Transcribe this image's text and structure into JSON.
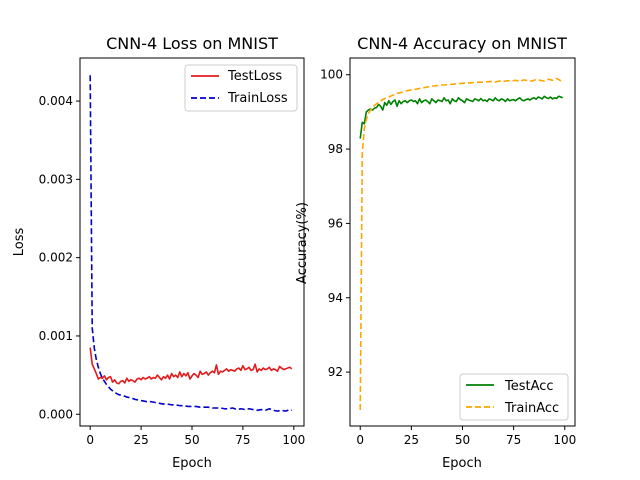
{
  "chart_data": [
    {
      "type": "line",
      "title": "CNN-4 Loss on MNIST",
      "xlabel": "Epoch",
      "ylabel": "Loss",
      "xlim": [
        -5,
        105
      ],
      "ylim": [
        -0.00015,
        0.00455
      ],
      "xticks": [
        0,
        25,
        50,
        75,
        100
      ],
      "xtick_labels": [
        "0",
        "25",
        "50",
        "75",
        "100"
      ],
      "yticks": [
        0.0,
        0.001,
        0.002,
        0.003,
        0.004
      ],
      "ytick_labels": [
        "0.000",
        "0.001",
        "0.002",
        "0.003",
        "0.004"
      ],
      "grid": false,
      "legend": "top-right",
      "series": [
        {
          "name": "TestLoss",
          "color": "#e31a1c",
          "style": "solid",
          "x": [
            0,
            1,
            2,
            3,
            4,
            5,
            6,
            7,
            8,
            9,
            10,
            11,
            12,
            13,
            14,
            15,
            16,
            17,
            18,
            19,
            20,
            21,
            22,
            23,
            24,
            25,
            26,
            27,
            28,
            29,
            30,
            31,
            32,
            33,
            34,
            35,
            36,
            37,
            38,
            39,
            40,
            41,
            42,
            43,
            44,
            45,
            46,
            47,
            48,
            49,
            50,
            51,
            52,
            53,
            54,
            55,
            56,
            57,
            58,
            59,
            60,
            61,
            62,
            63,
            64,
            65,
            66,
            67,
            68,
            69,
            70,
            71,
            72,
            73,
            74,
            75,
            76,
            77,
            78,
            79,
            80,
            81,
            82,
            83,
            84,
            85,
            86,
            87,
            88,
            89,
            90,
            91,
            92,
            93,
            94,
            95,
            96,
            97,
            98,
            99
          ],
          "y": [
            0.00085,
            0.00064,
            0.00058,
            0.00052,
            0.00045,
            0.00047,
            0.00046,
            0.00049,
            0.00044,
            0.00047,
            0.00048,
            0.00041,
            0.00044,
            0.0004,
            0.00039,
            0.00042,
            0.00043,
            0.0004,
            0.00046,
            0.00042,
            0.00044,
            0.00043,
            0.00041,
            0.00045,
            0.00046,
            0.00044,
            0.00047,
            0.00045,
            0.00046,
            0.00048,
            0.00045,
            0.00047,
            0.00046,
            0.0005,
            0.00047,
            0.00044,
            0.00048,
            0.00046,
            0.0005,
            0.00045,
            0.00052,
            0.00048,
            0.0005,
            0.00047,
            0.00054,
            0.00048,
            0.00052,
            0.00049,
            0.00053,
            0.00045,
            0.00049,
            0.00052,
            0.0005,
            0.00047,
            0.00055,
            0.00051,
            0.00052,
            0.00054,
            0.0005,
            0.00053,
            0.00055,
            0.00053,
            0.00063,
            0.00051,
            0.00055,
            0.00054,
            0.00056,
            0.00058,
            0.00055,
            0.00057,
            0.00056,
            0.00055,
            0.00058,
            0.00059,
            0.00056,
            0.00062,
            0.00057,
            0.00058,
            0.0006,
            0.00056,
            0.00057,
            0.00064,
            0.00054,
            0.00058,
            0.00056,
            0.00059,
            0.00057,
            0.00058,
            0.0006,
            0.00056,
            0.00058,
            0.00057,
            0.00055,
            0.00061,
            0.00059,
            0.00057,
            0.00058,
            0.00059,
            0.0006,
            0.00058
          ]
        },
        {
          "name": "TrainLoss",
          "color": "#0000cc",
          "style": "dashed",
          "x": [
            0,
            1,
            2,
            3,
            4,
            5,
            6,
            7,
            8,
            9,
            10,
            12,
            14,
            16,
            18,
            20,
            22,
            24,
            26,
            28,
            30,
            32,
            34,
            36,
            38,
            40,
            42,
            44,
            46,
            48,
            50,
            52,
            54,
            56,
            58,
            60,
            62,
            64,
            66,
            68,
            70,
            72,
            74,
            76,
            78,
            80,
            82,
            84,
            86,
            88,
            90,
            92,
            94,
            96,
            98,
            99
          ],
          "y": [
            0.00433,
            0.0011,
            0.00085,
            0.0007,
            0.0006,
            0.00052,
            0.00046,
            0.00042,
            0.00038,
            0.00035,
            0.00032,
            0.00028,
            0.00025,
            0.00024,
            0.00022,
            0.00021,
            0.00019,
            0.00018,
            0.00017,
            0.00016,
            0.00016,
            0.00015,
            0.00014,
            0.00013,
            0.00013,
            0.00012,
            0.00012,
            0.00011,
            0.00011,
            0.0001,
            0.0001,
            0.0001,
            9e-05,
            9e-05,
            9e-05,
            8e-05,
            8e-05,
            8e-05,
            7e-05,
            7e-05,
            8e-05,
            6e-05,
            7e-05,
            6e-05,
            7e-05,
            6e-05,
            5e-05,
            6e-05,
            5e-05,
            7e-05,
            5e-05,
            4e-05,
            5e-05,
            4e-05,
            6e-05,
            5e-05
          ]
        }
      ]
    },
    {
      "type": "line",
      "title": "CNN-4 Accuracy on MNIST",
      "xlabel": "Epoch",
      "ylabel": "Accuracy(%)",
      "xlim": [
        -5,
        105
      ],
      "ylim": [
        90.55,
        100.45
      ],
      "xticks": [
        0,
        25,
        50,
        75,
        100
      ],
      "xtick_labels": [
        "0",
        "25",
        "50",
        "75",
        "100"
      ],
      "yticks": [
        92,
        94,
        96,
        98,
        100
      ],
      "ytick_labels": [
        "92",
        "94",
        "96",
        "98",
        "100"
      ],
      "grid": false,
      "legend": "bottom-right",
      "series": [
        {
          "name": "TestAcc",
          "color": "#008000",
          "style": "solid",
          "x": [
            0,
            1,
            2,
            3,
            4,
            5,
            6,
            7,
            8,
            9,
            10,
            11,
            12,
            13,
            14,
            15,
            16,
            17,
            18,
            19,
            20,
            21,
            22,
            23,
            24,
            25,
            26,
            27,
            28,
            29,
            30,
            31,
            32,
            33,
            34,
            35,
            36,
            37,
            38,
            39,
            40,
            41,
            42,
            43,
            44,
            45,
            46,
            47,
            48,
            49,
            50,
            51,
            52,
            53,
            54,
            55,
            56,
            57,
            58,
            59,
            60,
            61,
            62,
            63,
            64,
            65,
            66,
            67,
            68,
            69,
            70,
            71,
            72,
            73,
            74,
            75,
            76,
            77,
            78,
            79,
            80,
            81,
            82,
            83,
            84,
            85,
            86,
            87,
            88,
            89,
            90,
            91,
            92,
            93,
            94,
            95,
            96,
            97,
            98,
            99
          ],
          "y": [
            98.28,
            98.72,
            98.68,
            99.0,
            99.05,
            99.08,
            99.05,
            99.1,
            99.12,
            99.2,
            99.15,
            99.05,
            99.25,
            99.18,
            99.3,
            99.2,
            99.28,
            99.32,
            99.15,
            99.3,
            99.22,
            99.28,
            99.3,
            99.25,
            99.3,
            99.32,
            99.28,
            99.3,
            99.22,
            99.35,
            99.25,
            99.3,
            99.32,
            99.28,
            99.22,
            99.35,
            99.3,
            99.25,
            99.32,
            99.3,
            99.28,
            99.38,
            99.3,
            99.32,
            99.22,
            99.35,
            99.3,
            99.28,
            99.38,
            99.33,
            99.3,
            99.25,
            99.35,
            99.32,
            99.3,
            99.28,
            99.35,
            99.33,
            99.3,
            99.36,
            99.3,
            99.32,
            99.28,
            99.35,
            99.33,
            99.3,
            99.38,
            99.32,
            99.3,
            99.35,
            99.33,
            99.28,
            99.35,
            99.3,
            99.32,
            99.33,
            99.3,
            99.35,
            99.38,
            99.32,
            99.3,
            99.33,
            99.35,
            99.32,
            99.36,
            99.38,
            99.34,
            99.4,
            99.38,
            99.35,
            99.42,
            99.38,
            99.36,
            99.4,
            99.35,
            99.38,
            99.36,
            99.42,
            99.4,
            99.38
          ]
        },
        {
          "name": "TrainAcc",
          "color": "#ffa500",
          "style": "dashed",
          "x": [
            0,
            1,
            2,
            3,
            4,
            5,
            6,
            7,
            8,
            10,
            12,
            14,
            16,
            18,
            20,
            22,
            24,
            26,
            28,
            30,
            32,
            34,
            36,
            38,
            40,
            42,
            44,
            46,
            48,
            50,
            52,
            54,
            56,
            58,
            60,
            62,
            64,
            66,
            68,
            70,
            72,
            74,
            76,
            78,
            80,
            82,
            84,
            86,
            88,
            90,
            92,
            94,
            96,
            98,
            99
          ],
          "y": [
            90.98,
            97.9,
            98.55,
            98.8,
            98.95,
            99.05,
            99.12,
            99.18,
            99.22,
            99.3,
            99.36,
            99.4,
            99.45,
            99.5,
            99.52,
            99.56,
            99.58,
            99.6,
            99.62,
            99.64,
            99.66,
            99.68,
            99.7,
            99.71,
            99.72,
            99.73,
            99.74,
            99.75,
            99.76,
            99.77,
            99.78,
            99.78,
            99.79,
            99.8,
            99.8,
            99.81,
            99.82,
            99.8,
            99.83,
            99.82,
            99.84,
            99.83,
            99.85,
            99.82,
            99.86,
            99.84,
            99.83,
            99.87,
            99.85,
            99.83,
            99.88,
            99.85,
            99.9,
            99.84,
            99.86
          ]
        }
      ]
    }
  ]
}
